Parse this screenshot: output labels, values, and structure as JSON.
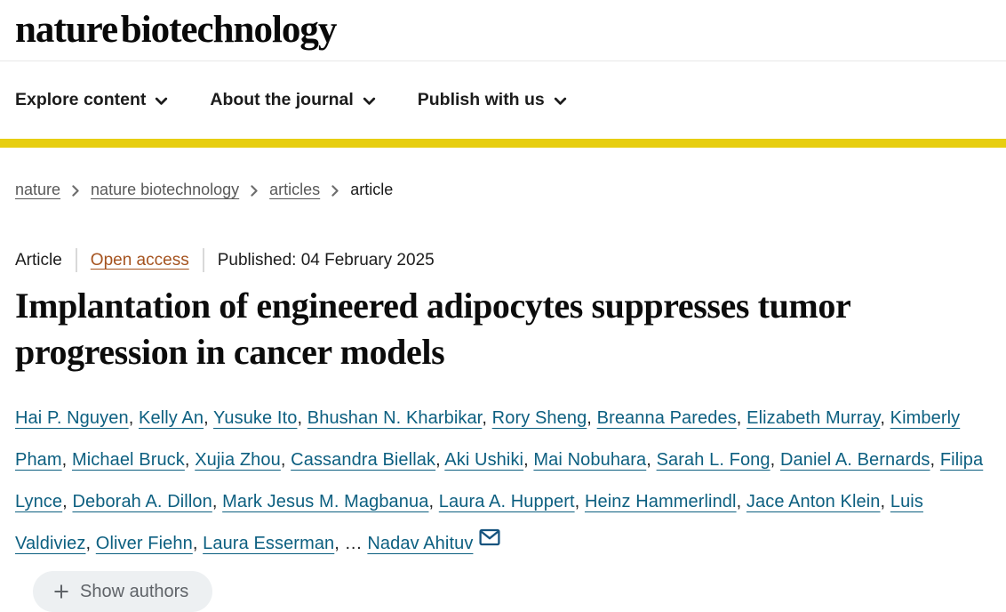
{
  "colors": {
    "brand_yellow": "#e7ce10",
    "link_teal": "#0c5f80",
    "open_access": "#a5531f"
  },
  "header": {
    "logo": "nature biotechnology",
    "nav_items": [
      "Explore content",
      "About the journal",
      "Publish with us"
    ]
  },
  "breadcrumb": {
    "links": [
      "nature",
      "nature biotechnology",
      "articles"
    ],
    "current": "article"
  },
  "article": {
    "type_label": "Article",
    "access_label": "Open access",
    "published": "Published: 04 February 2025",
    "title": "Implantation of engineered adipocytes suppresses tumor progression in cancer models",
    "authors": [
      "Hai P. Nguyen",
      "Kelly An",
      "Yusuke Ito",
      "Bhushan N. Kharbikar",
      "Rory Sheng",
      "Breanna Paredes",
      "Elizabeth Murray",
      "Kimberly Pham",
      "Michael Bruck",
      "Xujia Zhou",
      "Cassandra Biellak",
      "Aki Ushiki",
      "Mai Nobuhara",
      "Sarah L. Fong",
      "Daniel A. Bernards",
      "Filipa Lynce",
      "Deborah A. Dillon",
      "Mark Jesus M. Magbanua",
      "Laura A. Huppert",
      "Heinz Hammerlindl",
      "Jace Anton Klein",
      "Luis Valdiviez",
      "Oliver Fiehn",
      "Laura Esserman"
    ],
    "ellipsis": "…",
    "last_author": "Nadav Ahituv",
    "show_authors_label": "Show authors"
  },
  "icons": {
    "nav_chevron": "chevron-down-icon",
    "breadcrumb_separator": "chevron-right-icon",
    "email": "email-icon",
    "plus": "plus-icon"
  }
}
